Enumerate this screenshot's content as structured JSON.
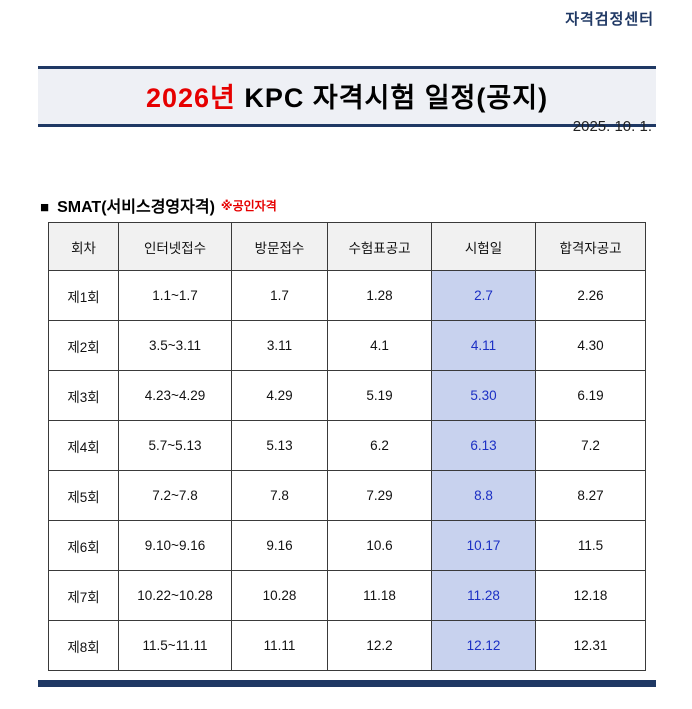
{
  "page": {
    "org_label": "자격검정센터",
    "title_year": "2026년",
    "title_rest": " KPC 자격시험 일정(공지)",
    "date": "2025. 10. 1.",
    "section_marker": "■",
    "section_title": "SMAT(서비스경영자격)",
    "section_note": "※공인자격"
  },
  "colors": {
    "navy": "#1f3864",
    "red": "#e60000",
    "exam_day_bg": "#c8d2ee",
    "exam_day_text": "#1b2fc4",
    "header_row_bg": "#f1f1f1"
  },
  "table": {
    "headers": [
      "회차",
      "인터넷접수",
      "방문접수",
      "수험표공고",
      "시험일",
      "합격자공고"
    ],
    "rows": [
      {
        "round": "제1회",
        "internet": "1.1~1.7",
        "visit": "1.7",
        "ticket": "1.28",
        "exam": "2.7",
        "pass": "2.26"
      },
      {
        "round": "제2회",
        "internet": "3.5~3.11",
        "visit": "3.11",
        "ticket": "4.1",
        "exam": "4.11",
        "pass": "4.30"
      },
      {
        "round": "제3회",
        "internet": "4.23~4.29",
        "visit": "4.29",
        "ticket": "5.19",
        "exam": "5.30",
        "pass": "6.19"
      },
      {
        "round": "제4회",
        "internet": "5.7~5.13",
        "visit": "5.13",
        "ticket": "6.2",
        "exam": "6.13",
        "pass": "7.2"
      },
      {
        "round": "제5회",
        "internet": "7.2~7.8",
        "visit": "7.8",
        "ticket": "7.29",
        "exam": "8.8",
        "pass": "8.27"
      },
      {
        "round": "제6회",
        "internet": "9.10~9.16",
        "visit": "9.16",
        "ticket": "10.6",
        "exam": "10.17",
        "pass": "11.5"
      },
      {
        "round": "제7회",
        "internet": "10.22~10.28",
        "visit": "10.28",
        "ticket": "11.18",
        "exam": "11.28",
        "pass": "12.18"
      },
      {
        "round": "제8회",
        "internet": "11.5~11.11",
        "visit": "11.11",
        "ticket": "12.2",
        "exam": "12.12",
        "pass": "12.31"
      }
    ]
  }
}
